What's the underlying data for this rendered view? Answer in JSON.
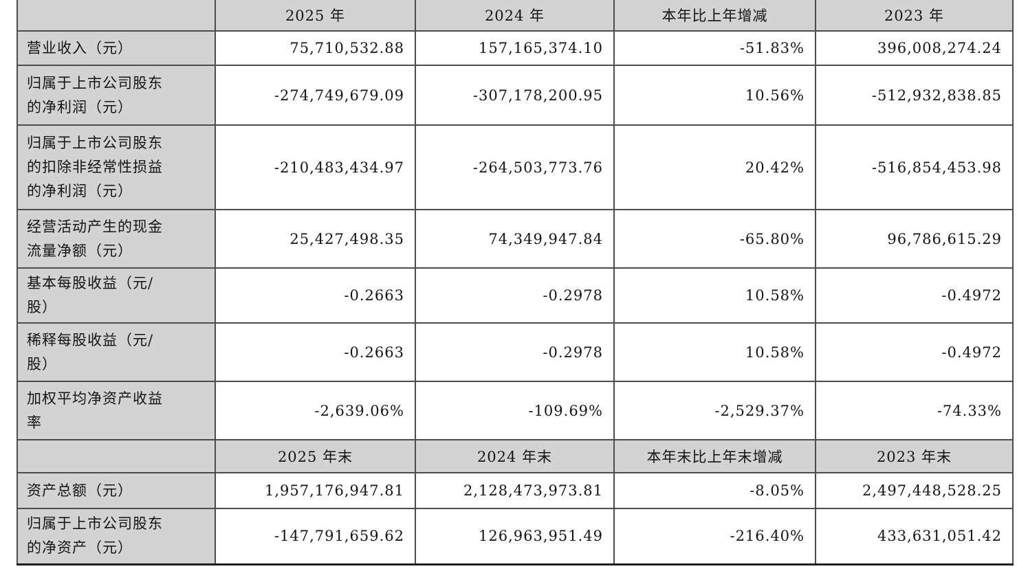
{
  "colors": {
    "header_and_label_bg": "#d3d3d3",
    "data_cell_bg": "#ffffff",
    "border": "#4c4c4c",
    "text": "#141414"
  },
  "table": {
    "header_row_1": {
      "c0": "",
      "c1": "2025 年",
      "c2": "2024 年",
      "c3": "本年比上年增减",
      "c4": "2023 年"
    },
    "rows_1": [
      {
        "label": "营业收入（元）",
        "y2025": "75,710,532.88",
        "y2024": "157,165,374.10",
        "change": "-51.83%",
        "y2023": "396,008,274.24"
      },
      {
        "label": "归属于上市公司股东\n的净利润（元）",
        "y2025": "-274,749,679.09",
        "y2024": "-307,178,200.95",
        "change": "10.56%",
        "y2023": "-512,932,838.85"
      },
      {
        "label": "归属于上市公司股东\n的扣除非经常性损益\n的净利润（元）",
        "y2025": "-210,483,434.97",
        "y2024": "-264,503,773.76",
        "change": "20.42%",
        "y2023": "-516,854,453.98"
      },
      {
        "label": "经营活动产生的现金\n流量净额（元）",
        "y2025": "25,427,498.35",
        "y2024": "74,349,947.84",
        "change": "-65.80%",
        "y2023": "96,786,615.29"
      },
      {
        "label": "基本每股收益（元/\n股）",
        "y2025": "-0.2663",
        "y2024": "-0.2978",
        "change": "10.58%",
        "y2023": "-0.4972"
      },
      {
        "label": "稀释每股收益（元/\n股）",
        "y2025": "-0.2663",
        "y2024": "-0.2978",
        "change": "10.58%",
        "y2023": "-0.4972"
      },
      {
        "label": "加权平均净资产收益\n率",
        "y2025": "-2,639.06%",
        "y2024": "-109.69%",
        "change": "-2,529.37%",
        "y2023": "-74.33%"
      }
    ],
    "header_row_2": {
      "c0": "",
      "c1": "2025 年末",
      "c2": "2024 年末",
      "c3": "本年末比上年末增减",
      "c4": "2023 年末"
    },
    "rows_2": [
      {
        "label": "资产总额（元）",
        "y2025": "1,957,176,947.81",
        "y2024": "2,128,473,973.81",
        "change": "-8.05%",
        "y2023": "2,497,448,528.25"
      },
      {
        "label": "归属于上市公司股东\n的净资产（元）",
        "y2025": "-147,791,659.62",
        "y2024": "126,963,951.49",
        "change": "-216.40%",
        "y2023": "433,631,051.42"
      }
    ]
  }
}
